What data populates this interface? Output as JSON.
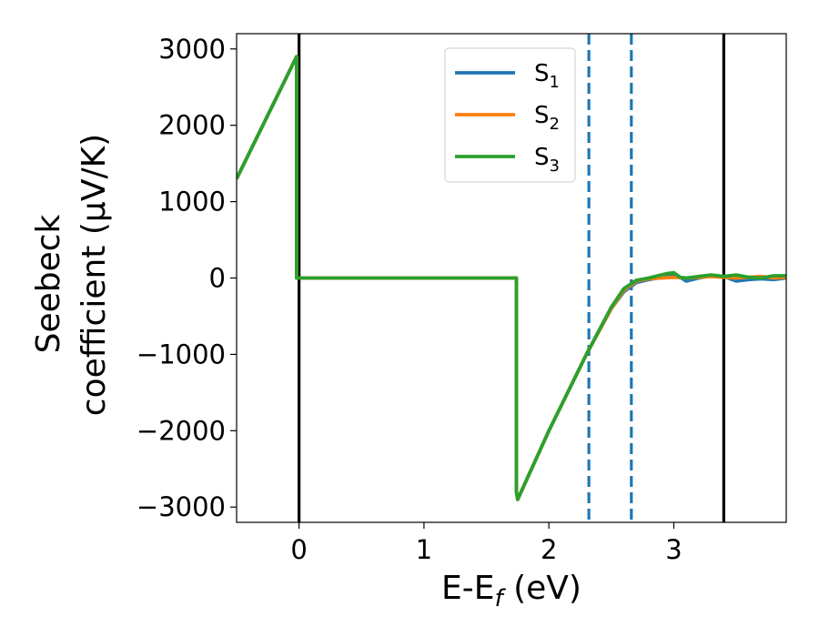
{
  "chart_data": {
    "type": "line",
    "xlabel_main": "E-E",
    "xlabel_sub": "f",
    "xlabel_rest": " (eV)",
    "ylabel_line1": "Seebeck",
    "ylabel_line2": "coefficient  (μV/K)",
    "xlim": [
      -0.5,
      3.9
    ],
    "ylim": [
      -3200,
      3200
    ],
    "xticks": [
      0,
      1,
      2,
      3
    ],
    "xtick_labels": [
      "0",
      "1",
      "2",
      "3"
    ],
    "yticks": [
      3000,
      2000,
      1000,
      0,
      -1000,
      -2000,
      -3000
    ],
    "ytick_labels": [
      "3000",
      "2000",
      "1000",
      "0",
      "−1000",
      "−2000",
      "−3000"
    ],
    "grid": false,
    "legend_position": "top-center",
    "series": [
      {
        "name": "S1",
        "label_base": "S",
        "label_sub": "1",
        "color": "#1f77b4",
        "x": [
          -0.5,
          -0.02,
          -0.02,
          1.74,
          1.74,
          1.75,
          2.0,
          2.3,
          2.5,
          2.6,
          2.7,
          2.8,
          2.9,
          3.0,
          3.05,
          3.1,
          3.2,
          3.3,
          3.4,
          3.5,
          3.6,
          3.7,
          3.8,
          3.9
        ],
        "y": [
          1300,
          2900,
          0,
          0,
          -2800,
          -2900,
          -2000,
          -1000,
          -400,
          -180,
          -60,
          -20,
          10,
          30,
          10,
          -40,
          0,
          30,
          20,
          -40,
          -20,
          -10,
          -20,
          0
        ]
      },
      {
        "name": "S2",
        "label_base": "S",
        "label_sub": "2",
        "color": "#ff7f0e",
        "x": [
          -0.5,
          -0.02,
          -0.02,
          1.74,
          1.74,
          1.75,
          2.0,
          2.3,
          2.5,
          2.6,
          2.7,
          2.8,
          2.9,
          3.0,
          3.1,
          3.2,
          3.3,
          3.4,
          3.5,
          3.6,
          3.7,
          3.8,
          3.9
        ],
        "y": [
          1300,
          2900,
          0,
          0,
          -2800,
          -2900,
          -2000,
          -1000,
          -400,
          -160,
          -40,
          -10,
          0,
          10,
          0,
          10,
          20,
          10,
          0,
          10,
          20,
          0,
          10
        ]
      },
      {
        "name": "S3",
        "label_base": "S",
        "label_sub": "3",
        "color": "#2ca02c",
        "x": [
          -0.5,
          -0.02,
          -0.02,
          1.74,
          1.74,
          1.75,
          2.0,
          2.3,
          2.5,
          2.6,
          2.7,
          2.8,
          2.9,
          2.95,
          3.0,
          3.05,
          3.1,
          3.2,
          3.3,
          3.4,
          3.5,
          3.6,
          3.7,
          3.8,
          3.9
        ],
        "y": [
          1300,
          2900,
          0,
          0,
          -2800,
          -2900,
          -2000,
          -1000,
          -380,
          -140,
          -30,
          0,
          40,
          60,
          70,
          10,
          0,
          20,
          40,
          20,
          40,
          10,
          0,
          30,
          30
        ]
      }
    ],
    "vlines": [
      {
        "x": 0.0,
        "style": "solid",
        "color": "#000000"
      },
      {
        "x": 3.4,
        "style": "solid",
        "color": "#000000"
      },
      {
        "x": 2.32,
        "style": "dashed",
        "color": "#1f77b4"
      },
      {
        "x": 2.66,
        "style": "dashed",
        "color": "#1f77b4"
      }
    ]
  }
}
